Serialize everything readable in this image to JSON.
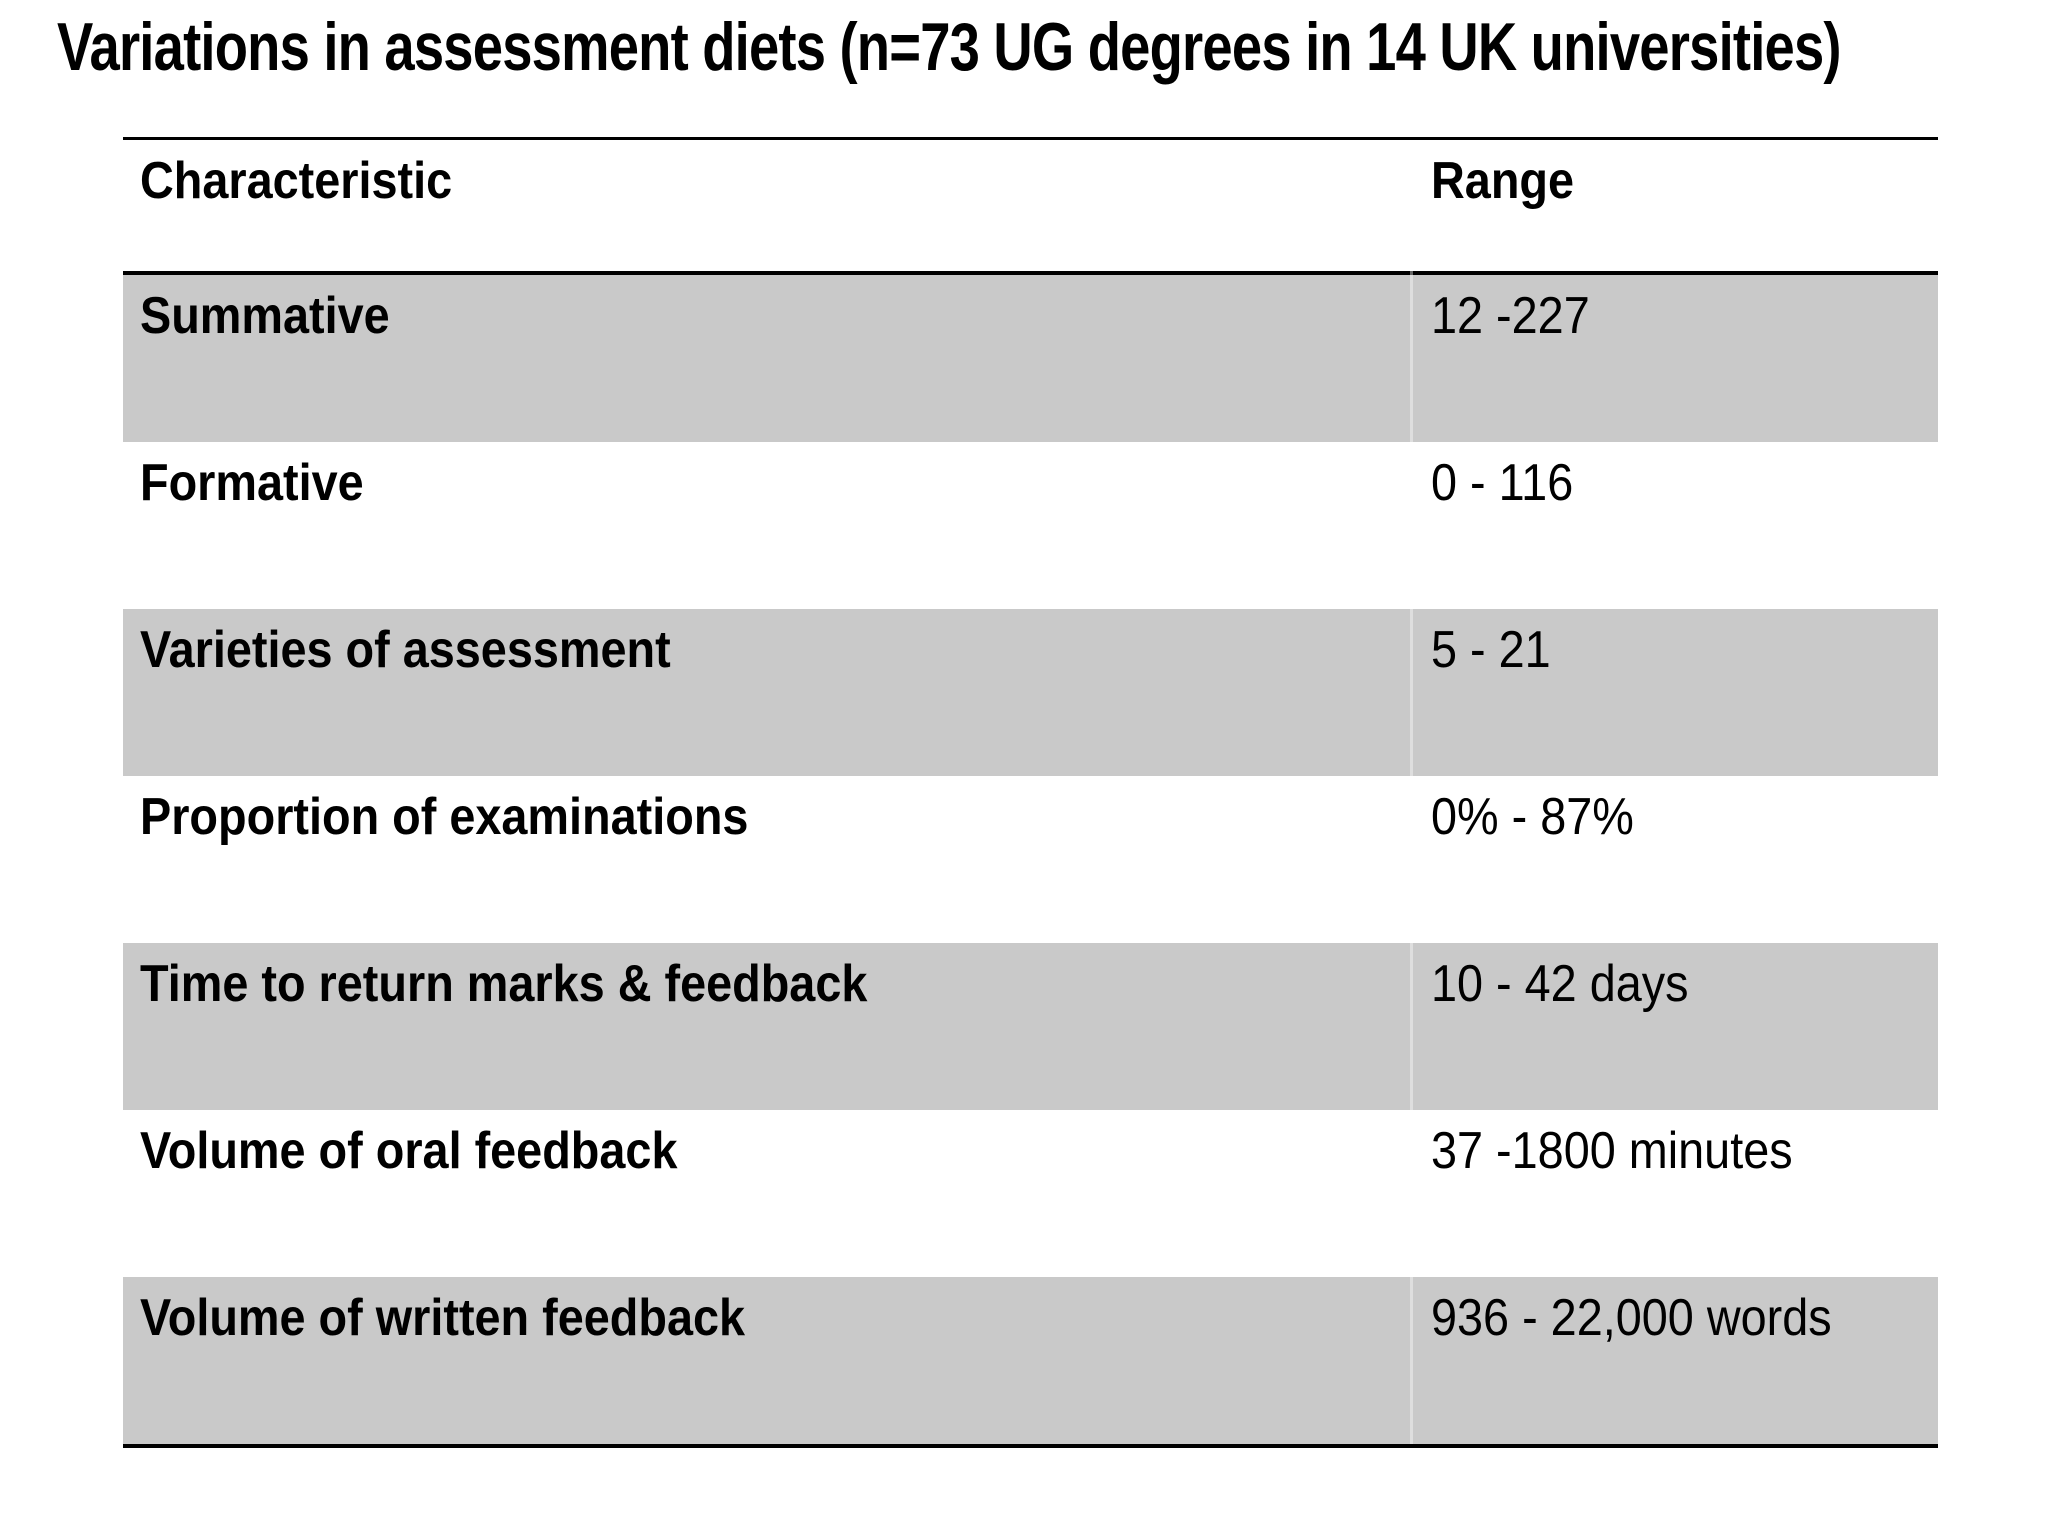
{
  "title": "Variations in assessment diets (n=73 UG degrees in 14 UK universities)",
  "table": {
    "columns": [
      "Characteristic",
      "Range"
    ],
    "rows": [
      {
        "characteristic": "Summative",
        "range": "12 -227",
        "shaded": true
      },
      {
        "characteristic": "Formative",
        "range": "0 - 116",
        "shaded": false
      },
      {
        "characteristic": "Varieties of assessment",
        "range": "5 - 21",
        "shaded": true
      },
      {
        "characteristic": "Proportion of examinations",
        "range": "0% - 87%",
        "shaded": false
      },
      {
        "characteristic": "Time to return marks & feedback",
        "range": "10 - 42 days",
        "shaded": true
      },
      {
        "characteristic": "Volume of oral feedback",
        "range": "37 -1800 minutes",
        "shaded": false
      },
      {
        "characteristic": "Volume of written feedback",
        "range": "936 - 22,000 words",
        "shaded": true
      }
    ]
  },
  "colors": {
    "background": "#ffffff",
    "row_shade": "#c9c9c9",
    "border": "#000000",
    "text": "#000000"
  }
}
